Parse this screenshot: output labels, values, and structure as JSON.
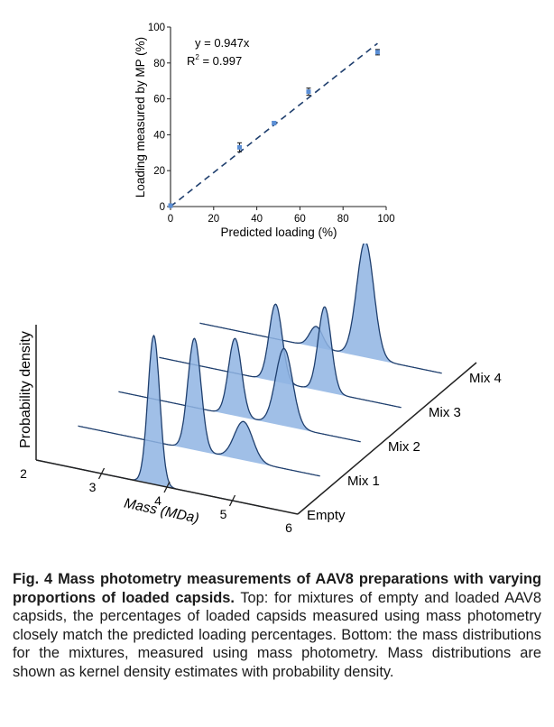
{
  "chart_data": [
    {
      "type": "scatter",
      "title": "",
      "xlabel": "Predicted loading (%)",
      "ylabel": "Loading measured by MP (%)",
      "xlim": [
        0,
        100
      ],
      "ylim": [
        0,
        100
      ],
      "xticks": [
        "0",
        "20",
        "40",
        "60",
        "80",
        "100"
      ],
      "yticks": [
        "0",
        "20",
        "40",
        "60",
        "80",
        "100"
      ],
      "points": [
        {
          "x": 0,
          "y": 0.5,
          "err": 1
        },
        {
          "x": 32,
          "y": 33,
          "err": 2.5
        },
        {
          "x": 48,
          "y": 46.5,
          "err": 0.8
        },
        {
          "x": 64,
          "y": 64,
          "err": 2
        },
        {
          "x": 96,
          "y": 86,
          "err": 1.5
        }
      ],
      "fit": {
        "slope": 0.947,
        "x_range": [
          0,
          96
        ]
      },
      "equation": "y = 0.947x",
      "r2_label": "R",
      "r2_sup": "2",
      "r2_value": " = 0.997",
      "marker_color": "#5b8fd6",
      "line_color": "#1f3f6e"
    },
    {
      "type": "area",
      "title": "",
      "xlabel": "Mass (MDa)",
      "ylabel": "Probability density",
      "xlim": [
        2,
        6
      ],
      "xticks": [
        "2",
        "3",
        "4",
        "5",
        "6"
      ],
      "series": [
        {
          "name": "Empty",
          "peaks": [
            {
              "mu": 3.8,
              "sigma": 0.09,
              "amp": 1.0
            }
          ]
        },
        {
          "name": "Mix 1",
          "peaks": [
            {
              "mu": 3.8,
              "sigma": 0.1,
              "amp": 0.75
            },
            {
              "mu": 4.55,
              "sigma": 0.14,
              "amp": 0.26
            }
          ]
        },
        {
          "name": "Mix 2",
          "peaks": [
            {
              "mu": 3.8,
              "sigma": 0.1,
              "amp": 0.52
            },
            {
              "mu": 4.55,
              "sigma": 0.13,
              "amp": 0.52
            }
          ]
        },
        {
          "name": "Mix 3",
          "peaks": [
            {
              "mu": 3.8,
              "sigma": 0.1,
              "amp": 0.52
            },
            {
              "mu": 4.55,
              "sigma": 0.1,
              "amp": 0.57
            }
          ]
        },
        {
          "name": "Mix 4",
          "peaks": [
            {
              "mu": 3.8,
              "sigma": 0.1,
              "amp": 0.14
            },
            {
              "mu": 4.55,
              "sigma": 0.13,
              "amp": 0.78
            }
          ]
        }
      ],
      "fill_color": "#8fb4e3",
      "stroke_color": "#1f3f6e"
    }
  ],
  "caption": {
    "bold": "Fig. 4 Mass photometry measurements of AAV8 preparations with varying proportions of loaded capsids.",
    "text": " Top: for mixtures of empty and loaded AAV8 capsids, the percentages of loaded capsids measured using mass photometry closely match the predicted loading percentages. Bottom: the mass distributions for the mixtures, measured using mass photometry. Mass distributions are shown as kernel density estimates with probability density."
  }
}
